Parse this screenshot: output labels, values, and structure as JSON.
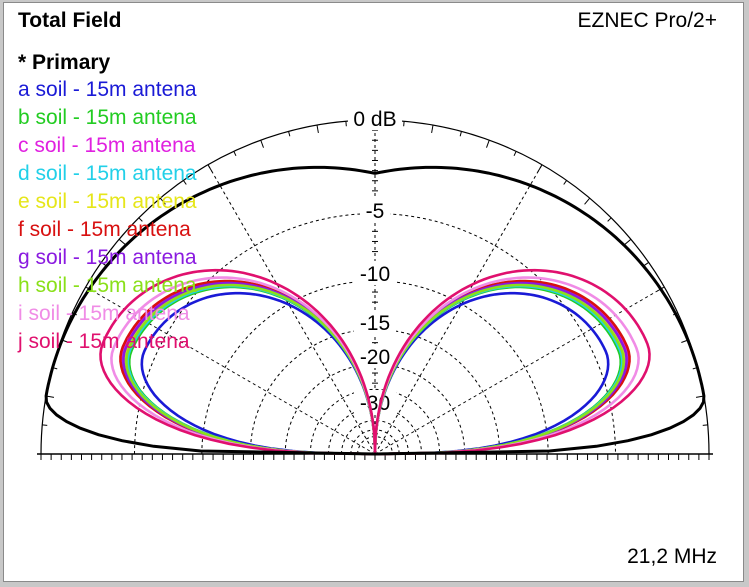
{
  "header": {
    "title": "Total Field",
    "product": "EZNEC Pro/2+"
  },
  "footer": {
    "frequency": "21,2 MHz"
  },
  "legend": {
    "heading": "* Primary"
  },
  "colors": {
    "ring": "#000000",
    "grid": "#000000",
    "background": "#ffffff"
  },
  "chart_data": {
    "type": "polar-elevation",
    "title": "Total Field",
    "radial_scale": "dB",
    "ring_labels": [
      "0 dB",
      "-5",
      "-10",
      "-15",
      "-20",
      "-30"
    ],
    "ring_values_db": [
      0,
      -5,
      -10,
      -15,
      -20,
      -30
    ],
    "angle_range_deg": [
      0,
      180
    ],
    "series": [
      {
        "name": "a soil - 15m antena",
        "color": "#1a1ad6",
        "peak_angle_deg": 24,
        "peak_db": -4.8,
        "zenith_null": true
      },
      {
        "name": "b soil - 15m antena",
        "color": "#22cc22",
        "peak_angle_deg": 23,
        "peak_db": -4.0,
        "zenith_null": true
      },
      {
        "name": "c soil - 15m antena",
        "color": "#e020e0",
        "peak_angle_deg": 23,
        "peak_db": -3.5,
        "zenith_null": true
      },
      {
        "name": "d soil - 15m antena",
        "color": "#22d0e8",
        "peak_angle_deg": 23,
        "peak_db": -3.9,
        "zenith_null": true
      },
      {
        "name": "e soil - 15m antena",
        "color": "#e6e61a",
        "peak_angle_deg": 23,
        "peak_db": -3.7,
        "zenith_null": true
      },
      {
        "name": "f soil - 15m antena",
        "color": "#d81010",
        "peak_angle_deg": 23,
        "peak_db": -3.4,
        "zenith_null": true
      },
      {
        "name": "g soil - 15m antena",
        "color": "#8a1ae0",
        "peak_angle_deg": 23,
        "peak_db": -3.6,
        "zenith_null": true
      },
      {
        "name": "h soil - 15m antena",
        "color": "#8ae01a",
        "peak_angle_deg": 23,
        "peak_db": -3.8,
        "zenith_null": true
      },
      {
        "name": "i soil - 15m antena",
        "color": "#f08ce6",
        "peak_angle_deg": 22,
        "peak_db": -2.9,
        "zenith_null": true
      },
      {
        "name": "j soil - 15m antena",
        "color": "#e0106e",
        "peak_angle_deg": 22,
        "peak_db": -2.2,
        "zenith_null": true
      },
      {
        "name": "",
        "color": "#000000",
        "peak_angle_deg": 10,
        "peak_db": 0,
        "zenith_null": false
      }
    ]
  }
}
